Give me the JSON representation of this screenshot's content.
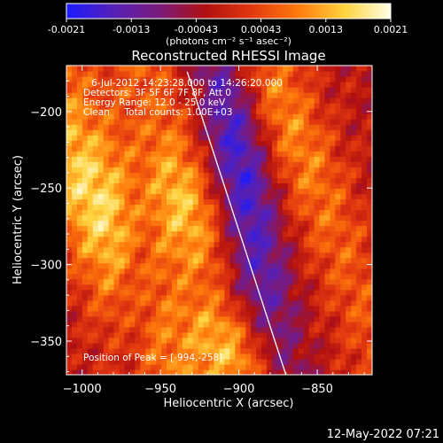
{
  "colorbar": {
    "ticks": [
      "-0.0021",
      "-0.0013",
      "-0.00043",
      "0.00043",
      "0.0013",
      "0.0021"
    ],
    "units": "(photons cm⁻² s⁻¹ asec⁻²)",
    "stops": [
      "#1b1bff",
      "#5520b8",
      "#7b1b7b",
      "#b01010",
      "#e33810",
      "#ff7a0c",
      "#ffd33d",
      "#ffffe6"
    ]
  },
  "chart_data": {
    "type": "heatmap",
    "title": "Reconstructed RHESSI Image",
    "xlabel": "Heliocentric X (arcsec)",
    "ylabel": "Heliocentric Y (arcsec)",
    "xlim": [
      -1010,
      -815
    ],
    "ylim": [
      -372,
      -170
    ],
    "xticks": [
      -1000,
      -950,
      -900,
      -850
    ],
    "yticks": [
      -350,
      -300,
      -250,
      -200
    ],
    "value_range": [
      -0.0021,
      0.0021
    ],
    "limb_line": {
      "x": [
        -933,
        -870
      ],
      "y": [
        -174,
        -372
      ]
    },
    "annotations": {
      "time_range": "6-Jul-2012 14:23:28.000 to 14:26:20.000",
      "detectors": "Detectors: 3F 5F 6F 7F 8F, Att 0",
      "energy_range": "Energy Range: 12.0 - 25.0 keV",
      "clean": "Clean     Total counts: 1.00E+03",
      "peak_position": "Position of Peak = [-994,-258]"
    }
  },
  "footer": {
    "timestamp": "12-May-2022 07:21"
  }
}
